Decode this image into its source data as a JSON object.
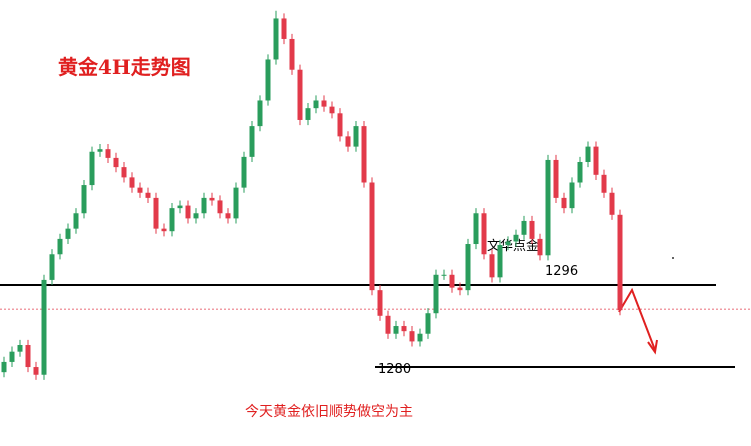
{
  "chart_data": {
    "type": "candlestick",
    "title": "黄金4H走势图",
    "annotation": "文华点金",
    "footnote": "今天黄金依旧顺势做空为主",
    "ylim": [
      1264.6,
      1351.6
    ],
    "up_color": "#2a9d5c",
    "down_color": "#e23a4a",
    "levels": [
      1296,
      1280
    ],
    "dashed_line": 1291.3,
    "open": [
      1279,
      1281,
      1283,
      1284.3,
      1280,
      1278.5,
      1297,
      1302,
      1305,
      1307,
      1310,
      1315.5,
      1322,
      1322.5,
      1320.8,
      1319,
      1317,
      1315,
      1314,
      1313,
      1307,
      1306.5,
      1311,
      1311.5,
      1309,
      1310,
      1313,
      1312.5,
      1310,
      1309,
      1315,
      1321,
      1327,
      1332,
      1340,
      1348,
      1344,
      1338,
      1328.2,
      1330.5,
      1332,
      1330.8,
      1329.5,
      1325,
      1323,
      1327,
      1316,
      1295,
      1290,
      1286.5,
      1288,
      1287,
      1285,
      1286.5,
      1290.5,
      1298,
      1298,
      1295.5,
      1295,
      1304,
      1310,
      1302,
      1297.5,
      1303.8,
      1304.5,
      1305.8,
      1308.5,
      1305,
      1301.8,
      1320.4,
      1313,
      1311,
      1316,
      1320,
      1323,
      1317.5,
      1314,
      1309.7
    ],
    "high": [
      1282,
      1284,
      1285.3,
      1285.3,
      1281,
      1298,
      1303,
      1306,
      1308,
      1311,
      1316.5,
      1323,
      1323.5,
      1323.5,
      1321.8,
      1320,
      1318,
      1316,
      1315,
      1314,
      1308,
      1312,
      1312.5,
      1312.5,
      1311,
      1314,
      1314,
      1313.5,
      1311,
      1316,
      1322,
      1328,
      1333,
      1341,
      1349.5,
      1349,
      1345,
      1339,
      1331.5,
      1333,
      1333,
      1331.8,
      1330.5,
      1326,
      1328,
      1328,
      1317,
      1296,
      1291,
      1289,
      1289,
      1288,
      1287.5,
      1291.5,
      1299,
      1299,
      1299,
      1296.5,
      1305,
      1311,
      1311,
      1303,
      1304.8,
      1305.5,
      1306.8,
      1309.5,
      1309.5,
      1306,
      1321.4,
      1321.4,
      1314,
      1317,
      1321,
      1324,
      1324,
      1318.5,
      1315,
      1310.7
    ],
    "low": [
      1278,
      1280,
      1282,
      1279,
      1277.5,
      1277.5,
      1296,
      1301,
      1304,
      1306,
      1309,
      1314.5,
      1321,
      1319.8,
      1318,
      1316,
      1314,
      1313,
      1312,
      1306,
      1305.5,
      1305.5,
      1310,
      1308,
      1308,
      1309,
      1311.5,
      1309,
      1308,
      1308,
      1314,
      1320,
      1326,
      1331,
      1339,
      1343,
      1337,
      1327.2,
      1327.2,
      1329.5,
      1329.8,
      1328.5,
      1324,
      1322,
      1322,
      1315,
      1294,
      1289,
      1285.5,
      1285.5,
      1286,
      1284,
      1284,
      1285.5,
      1289.5,
      1297,
      1294.5,
      1294,
      1294,
      1303,
      1301,
      1296.5,
      1296.5,
      1302.8,
      1303.5,
      1304.8,
      1304,
      1300.8,
      1300.8,
      1312,
      1310,
      1310,
      1315,
      1319,
      1316.5,
      1313,
      1308.7,
      1290.1
    ],
    "close": [
      1281,
      1283,
      1284.3,
      1280,
      1278.5,
      1297,
      1302,
      1305,
      1307,
      1310,
      1315.5,
      1322,
      1322.5,
      1320.8,
      1319,
      1317,
      1315,
      1314,
      1313,
      1307,
      1306.5,
      1311,
      1311.5,
      1309,
      1310,
      1313,
      1312.5,
      1310,
      1309,
      1315,
      1321,
      1327,
      1332,
      1340,
      1348,
      1344,
      1338,
      1328.2,
      1330.5,
      1332,
      1330.8,
      1329.5,
      1325,
      1323,
      1327,
      1316,
      1295,
      1290,
      1286.5,
      1288,
      1287,
      1285,
      1286.5,
      1290.5,
      1298,
      1298,
      1295.5,
      1295,
      1304,
      1310,
      1302,
      1297.5,
      1303.8,
      1304.5,
      1305.8,
      1308.5,
      1305,
      1301.8,
      1320.4,
      1313,
      1311,
      1316,
      1320,
      1323,
      1317.5,
      1314,
      1309.7,
      1291.1
    ]
  }
}
